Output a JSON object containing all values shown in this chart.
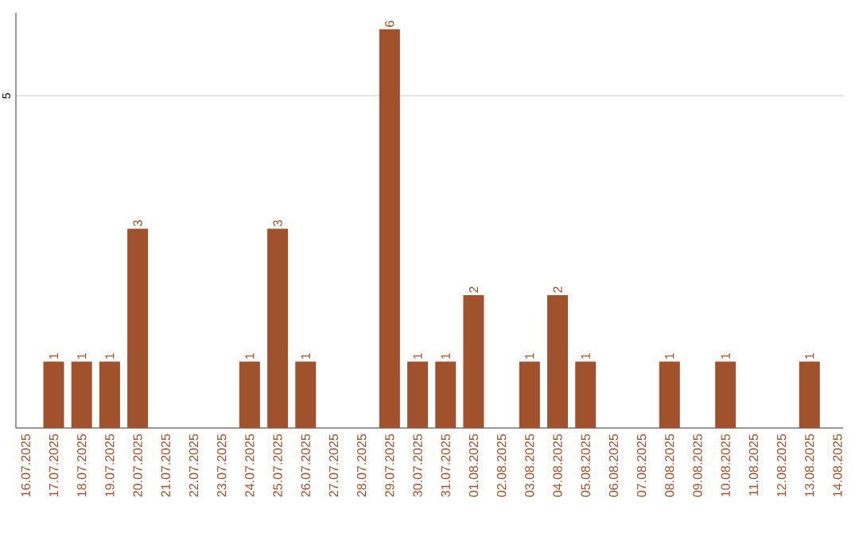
{
  "chart_data": {
    "type": "bar",
    "categories": [
      "16.07.2025",
      "17.07.2025",
      "18.07.2025",
      "19.07.2025",
      "20.07.2025",
      "21.07.2025",
      "22.07.2025",
      "23.07.2025",
      "24.07.2025",
      "25.07.2025",
      "26.07.2025",
      "27.07.2025",
      "28.07.2025",
      "29.07.2025",
      "30.07.2025",
      "31.07.2025",
      "01.08.2025",
      "02.08.2025",
      "03.08.2025",
      "04.08.2025",
      "05.08.2025",
      "06.08.2025",
      "07.08.2025",
      "08.08.2025",
      "09.08.2025",
      "10.08.2025",
      "11.08.2025",
      "12.08.2025",
      "13.08.2025",
      "14.08.2025"
    ],
    "values": [
      0,
      1,
      1,
      1,
      3,
      0,
      0,
      0,
      1,
      3,
      1,
      0,
      0,
      6,
      1,
      1,
      2,
      0,
      1,
      2,
      1,
      0,
      0,
      1,
      0,
      1,
      0,
      0,
      1,
      0
    ],
    "value_labels": [
      null,
      "1",
      "1",
      "1",
      "3",
      null,
      null,
      null,
      "1",
      "3",
      "1",
      null,
      null,
      "6",
      "1",
      "1",
      "2",
      null,
      "1",
      "2",
      "1",
      null,
      null,
      "1",
      null,
      "1",
      null,
      null,
      "1",
      null
    ],
    "color": "#a0522d",
    "ylim": [
      0,
      6.25
    ],
    "yticks": [
      5
    ],
    "grid": "y"
  }
}
